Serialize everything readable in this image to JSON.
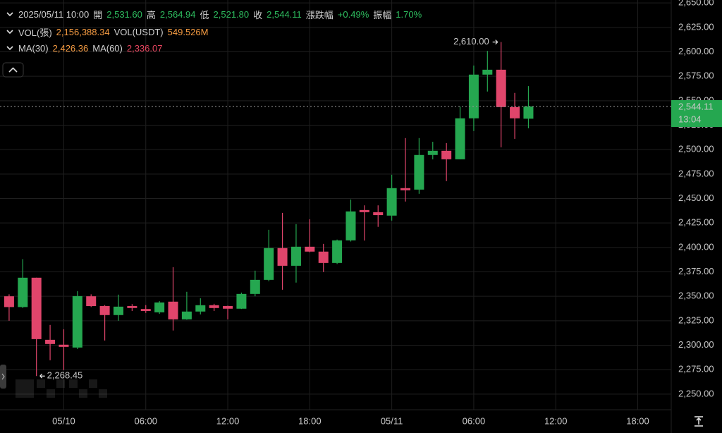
{
  "header": {
    "datetime": "2025/05/11 10:00",
    "ohlc": [
      {
        "label": "開",
        "value": "2,531.60"
      },
      {
        "label": "高",
        "value": "2,564.94"
      },
      {
        "label": "低",
        "value": "2,521.80"
      },
      {
        "label": "收",
        "value": "2,544.11"
      },
      {
        "label": "漲跌幅",
        "value": "+0.49%"
      },
      {
        "label": "振幅",
        "value": "1.70%"
      }
    ],
    "volume": [
      {
        "label": "VOL(張)",
        "value": "2,156,388.34"
      },
      {
        "label": "VOL(USDT)",
        "value": "549.526M"
      }
    ],
    "ma": [
      {
        "label": "MA(30)",
        "value": "2,426.36"
      },
      {
        "label": "MA(60)",
        "value": "2,336.07"
      }
    ]
  },
  "chart_data": {
    "type": "candlestick",
    "up_color": "#25a750",
    "down_color": "#e0456b",
    "grid": true,
    "x": [
      "2025/05/09 20:00",
      "2025/05/09 21:00",
      "2025/05/09 22:00",
      "2025/05/09 23:00",
      "2025/05/10 00:00",
      "2025/05/10 01:00",
      "2025/05/10 02:00",
      "2025/05/10 03:00",
      "2025/05/10 04:00",
      "2025/05/10 05:00",
      "2025/05/10 06:00",
      "2025/05/10 07:00",
      "2025/05/10 08:00",
      "2025/05/10 09:00",
      "2025/05/10 10:00",
      "2025/05/10 11:00",
      "2025/05/10 12:00",
      "2025/05/10 13:00",
      "2025/05/10 14:00",
      "2025/05/10 15:00",
      "2025/05/10 16:00",
      "2025/05/10 17:00",
      "2025/05/10 18:00",
      "2025/05/10 19:00",
      "2025/05/10 20:00",
      "2025/05/10 21:00",
      "2025/05/10 22:00",
      "2025/05/10 23:00",
      "2025/05/11 00:00",
      "2025/05/11 01:00",
      "2025/05/11 02:00",
      "2025/05/11 03:00",
      "2025/05/11 04:00",
      "2025/05/11 05:00",
      "2025/05/11 06:00",
      "2025/05/11 07:00",
      "2025/05/11 08:00",
      "2025/05/11 09:00",
      "2025/05/11 10:00"
    ],
    "open": [
      2350,
      2339,
      2369,
      2305.5,
      2300.5,
      2297.6,
      2350,
      2340,
      2330.8,
      2340,
      2337,
      2333.6,
      2344.5,
      2326.4,
      2334.4,
      2340.9,
      2340,
      2337.3,
      2352.4,
      2366.8,
      2399.3,
      2381.2,
      2400.7,
      2395.7,
      2384.1,
      2407.2,
      2438.2,
      2436,
      2432.5,
      2460.6,
      2459.1,
      2494.5,
      2498.8,
      2490.1,
      2532,
      2576.7,
      2581.7,
      2543.5,
      2531.6
    ],
    "high": [
      2352,
      2388,
      2369,
      2320.7,
      2316.3,
      2355.3,
      2352,
      2341,
      2351.7,
      2342,
      2341,
      2345,
      2379.8,
      2354.6,
      2348,
      2342.3,
      2340.5,
      2353.8,
      2376.2,
      2418,
      2435.3,
      2423.8,
      2428.8,
      2403.6,
      2408,
      2449,
      2443,
      2443,
      2474.3,
      2511.8,
      2511.8,
      2508,
      2506.7,
      2544,
      2586,
      2601,
      2610,
      2558,
      2564.94
    ],
    "low": [
      2325,
      2338,
      2268.45,
      2284.6,
      2274.5,
      2296,
      2339,
      2304.8,
      2325,
      2335,
      2333,
      2332,
      2315,
      2326,
      2331.5,
      2335,
      2326.4,
      2337,
      2350,
      2365.4,
      2356.7,
      2364,
      2395,
      2374.8,
      2383,
      2406,
      2407,
      2421,
      2427.4,
      2446.9,
      2454.8,
      2490,
      2467.8,
      2490,
      2519,
      2559.4,
      2502.4,
      2511,
      2521.8
    ],
    "close": [
      2339,
      2369,
      2306.2,
      2301.2,
      2298.3,
      2350.2,
      2340,
      2330.8,
      2339.4,
      2338,
      2335,
      2343.7,
      2326.4,
      2334.4,
      2340.9,
      2338,
      2337.3,
      2352.4,
      2366.8,
      2399.3,
      2381.2,
      2400.7,
      2395.7,
      2384.1,
      2407.2,
      2436.8,
      2436,
      2433,
      2460.6,
      2458.4,
      2494.5,
      2498.8,
      2490.1,
      2532,
      2576.7,
      2581.7,
      2543.5,
      2532,
      2544.11
    ],
    "xlim": [
      "2025/05/09 19:20",
      "2025/05/11 20:27"
    ],
    "xticks": [
      {
        "value": "2025/05/10 00:00",
        "label": "05/10"
      },
      {
        "value": "2025/05/10 06:00",
        "label": "06:00"
      },
      {
        "value": "2025/05/10 12:00",
        "label": "12:00"
      },
      {
        "value": "2025/05/10 18:00",
        "label": "18:00"
      },
      {
        "value": "2025/05/11 00:00",
        "label": "05/11"
      },
      {
        "value": "2025/05/11 06:00",
        "label": "06:00"
      },
      {
        "value": "2025/05/11 12:00",
        "label": "12:00"
      },
      {
        "value": "2025/05/11 18:00",
        "label": "18:00"
      }
    ],
    "ylim": [
      2234,
      2653
    ],
    "yticks": [
      {
        "value": 2250,
        "label": "2,250.00"
      },
      {
        "value": 2275,
        "label": "2,275.00"
      },
      {
        "value": 2300,
        "label": "2,300.00"
      },
      {
        "value": 2325,
        "label": "2,325.00"
      },
      {
        "value": 2350,
        "label": "2,350.00"
      },
      {
        "value": 2375,
        "label": "2,375.00"
      },
      {
        "value": 2400,
        "label": "2,400.00"
      },
      {
        "value": 2425,
        "label": "2,425.00"
      },
      {
        "value": 2450,
        "label": "2,450.00"
      },
      {
        "value": 2475,
        "label": "2,475.00"
      },
      {
        "value": 2500,
        "label": "2,500.00"
      },
      {
        "value": 2525,
        "label": "2,525.00"
      },
      {
        "value": 2550,
        "label": "2,550.00"
      },
      {
        "value": 2575,
        "label": "2,575.00"
      },
      {
        "value": 2600,
        "label": "2,600.00"
      },
      {
        "value": 2625,
        "label": "2,625.00"
      },
      {
        "value": 2650,
        "label": "2,650.00"
      }
    ],
    "high_marker": {
      "value": 2610,
      "label": "2,610.00"
    },
    "low_marker": {
      "value": 2268.45,
      "label": "2,268.45"
    },
    "last_price": {
      "value": 2544.11,
      "label": "2,544.11",
      "countdown": "13:04"
    }
  }
}
